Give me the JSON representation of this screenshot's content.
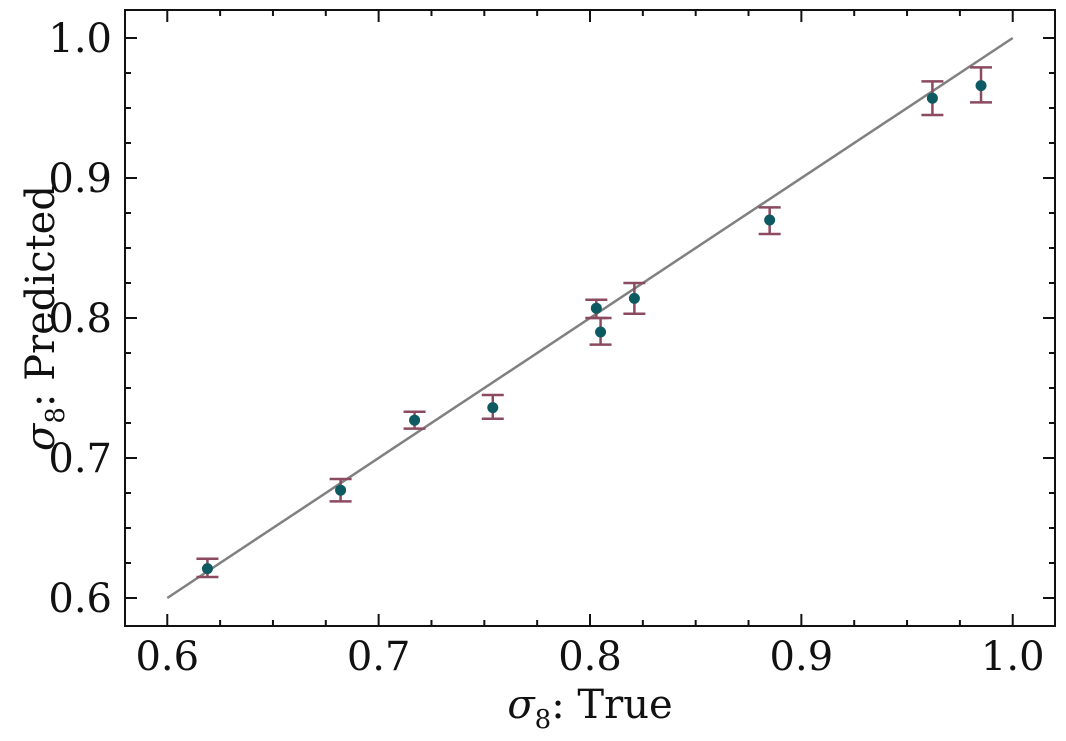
{
  "chart_data": {
    "type": "scatter",
    "title": "",
    "xlabel": "σ8: True",
    "ylabel": "σ8: Predicted",
    "xlabel_parts": {
      "symbol": "σ",
      "subscript": "8",
      "suffix": ": True"
    },
    "ylabel_parts": {
      "symbol": "σ",
      "subscript": "8",
      "suffix": ": Predicted"
    },
    "xlim": [
      0.58,
      1.02
    ],
    "ylim": [
      0.58,
      1.02
    ],
    "x_ticks": [
      0.6,
      0.7,
      0.8,
      0.9,
      1.0
    ],
    "y_ticks": [
      0.6,
      0.7,
      0.8,
      0.9,
      1.0
    ],
    "x_tick_labels": [
      "0.6",
      "0.7",
      "0.8",
      "0.9",
      "1.0"
    ],
    "y_tick_labels": [
      "0.6",
      "0.7",
      "0.8",
      "0.9",
      "1.0"
    ],
    "grid": false,
    "reference_line": {
      "x": [
        0.6,
        1.0
      ],
      "y": [
        0.6,
        1.0
      ],
      "color": "#808080"
    },
    "series": [
      {
        "x": [
          0.619,
          0.682,
          0.717,
          0.754,
          0.803,
          0.805,
          0.821,
          0.885,
          0.962,
          0.985
        ],
        "y": [
          0.621,
          0.677,
          0.727,
          0.736,
          0.807,
          0.79,
          0.814,
          0.87,
          0.957,
          0.966
        ],
        "y_low": [
          0.615,
          0.669,
          0.721,
          0.728,
          0.8,
          0.781,
          0.803,
          0.86,
          0.945,
          0.954
        ],
        "y_high": [
          0.628,
          0.685,
          0.733,
          0.745,
          0.813,
          0.8,
          0.825,
          0.879,
          0.969,
          0.979
        ]
      }
    ],
    "colors": {
      "marker": "#0e5a63",
      "errorbar": "#8b4a60",
      "reference": "#808080",
      "axes": "#111111"
    }
  }
}
